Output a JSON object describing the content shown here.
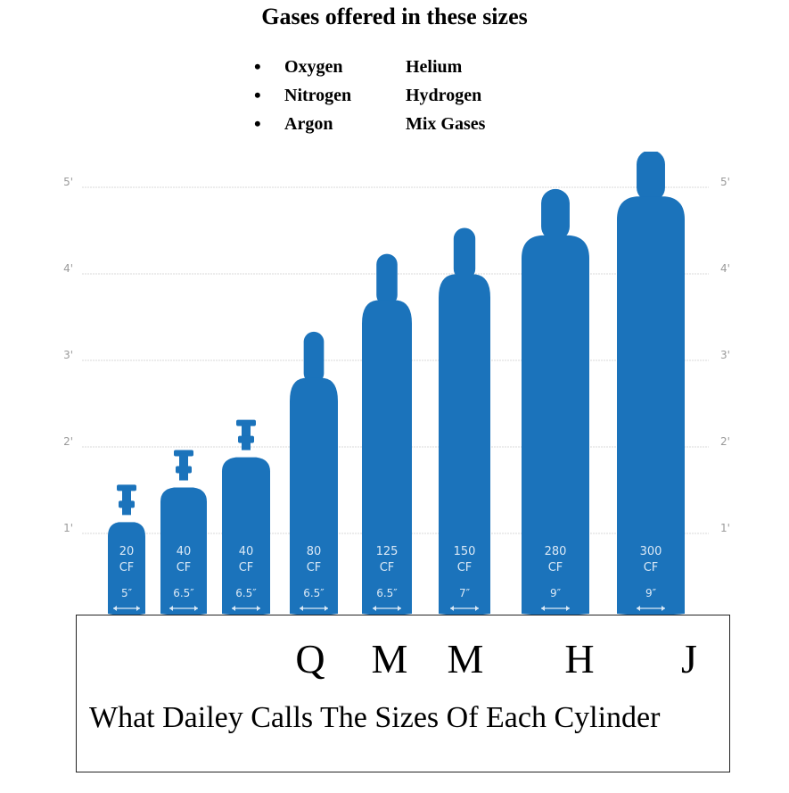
{
  "title": "Gases offered in these sizes",
  "gases": [
    {
      "left": "Oxygen",
      "right": "Helium"
    },
    {
      "left": "Nitrogen",
      "right": "Hydrogen"
    },
    {
      "left": "Argon",
      "right": "Mix Gases"
    }
  ],
  "colors": {
    "cylinder": "#1b73bb",
    "grid": "#d8d8d8",
    "tick": "#9a9a9a"
  },
  "chart_data": {
    "type": "bar",
    "title": "",
    "ylabel": "",
    "y_ticks": [
      "1'",
      "2'",
      "3'",
      "4'",
      "5'"
    ],
    "ylim": [
      0,
      5
    ],
    "categories": [
      "20 CF",
      "40 CF",
      "40 CF",
      "80 CF",
      "125 CF",
      "150 CF",
      "280 CF",
      "300 CF"
    ],
    "series": [
      {
        "values": [
          1.45,
          1.85,
          2.2,
          3.3,
          4.2,
          4.5,
          4.95,
          5.4
        ],
        "capacity": [
          "20",
          "40",
          "40",
          "80",
          "125",
          "150",
          "280",
          "300"
        ],
        "unit": "CF",
        "diameter": [
          "5″",
          "6.5″",
          "6.5″",
          "6.5″",
          "6.5″",
          "7″",
          "9″",
          "9″"
        ]
      }
    ]
  },
  "size_names": [
    "Q",
    "M",
    "M",
    "H",
    "J"
  ],
  "caption": "What Dailey Calls The Sizes Of Each Cylinder"
}
